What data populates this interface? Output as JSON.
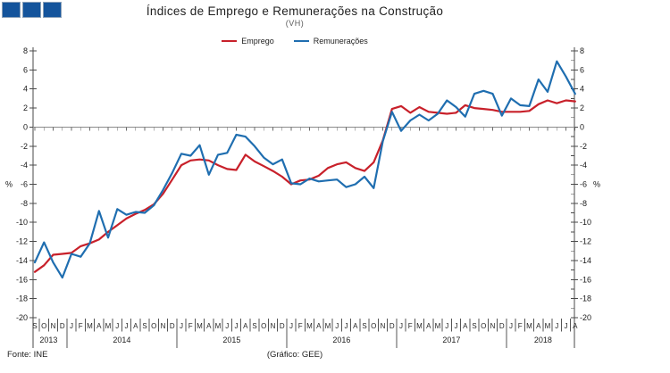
{
  "logo": {
    "fill": "#14549C",
    "border": "#8aa0b8"
  },
  "header": {
    "title": "Índices de Emprego  e Remunerações na Construção",
    "subtitle": "(VH)"
  },
  "legend": [
    {
      "label": "Emprego",
      "color": "#C8202A"
    },
    {
      "label": "Remunerações",
      "color": "#1F6EB0"
    }
  ],
  "footer": {
    "source": "Fonte:  INE",
    "credit": "(Gráfico:  GEE)"
  },
  "chart_data": {
    "type": "line",
    "title": "Índices de Emprego e Remunerações na Construção",
    "subtitle": "(VH)",
    "ylabel": "%",
    "ylim": [
      -20,
      8
    ],
    "ytick_step": 2,
    "grid": "zero-line-only",
    "legend_position": "top-center",
    "x_months": [
      "S",
      "O",
      "N",
      "D",
      "J",
      "F",
      "M",
      "A",
      "M",
      "J",
      "J",
      "A",
      "S",
      "O",
      "N",
      "D",
      "J",
      "F",
      "M",
      "A",
      "M",
      "J",
      "J",
      "A",
      "S",
      "O",
      "N",
      "D",
      "J",
      "F",
      "M",
      "A",
      "M",
      "J",
      "J",
      "A",
      "S",
      "O",
      "N",
      "D",
      "J",
      "F",
      "M",
      "A",
      "M",
      "J",
      "J",
      "A",
      "S",
      "O",
      "N",
      "D",
      "J",
      "F",
      "M",
      "A",
      "M",
      "J",
      "J",
      "A"
    ],
    "year_groups": [
      {
        "label": "2013",
        "start": 0,
        "count": 4
      },
      {
        "label": "2014",
        "start": 4,
        "count": 12
      },
      {
        "label": "2015",
        "start": 16,
        "count": 12
      },
      {
        "label": "2016",
        "start": 28,
        "count": 12
      },
      {
        "label": "2017",
        "start": 40,
        "count": 12
      },
      {
        "label": "2018",
        "start": 52,
        "count": 8
      }
    ],
    "series": [
      {
        "name": "Emprego",
        "color": "#C8202A",
        "values": [
          -15.2,
          -14.5,
          -13.4,
          -13.3,
          -13.2,
          -12.5,
          -12.2,
          -11.8,
          -11.0,
          -10.3,
          -9.6,
          -9.1,
          -8.7,
          -8.1,
          -7.0,
          -5.5,
          -4.0,
          -3.5,
          -3.4,
          -3.5,
          -4.0,
          -4.4,
          -4.5,
          -2.9,
          -3.6,
          -4.1,
          -4.6,
          -5.2,
          -6.0,
          -5.6,
          -5.5,
          -5.1,
          -4.3,
          -3.9,
          -3.7,
          -4.3,
          -4.6,
          -3.7,
          -1.4,
          1.9,
          2.2,
          1.5,
          2.1,
          1.6,
          1.5,
          1.4,
          1.5,
          2.3,
          2.0,
          1.9,
          1.8,
          1.6,
          1.6,
          1.6,
          1.7,
          2.4,
          2.8,
          2.5,
          2.8,
          2.7
        ]
      },
      {
        "name": "Remunerações",
        "color": "#1F6EB0",
        "values": [
          -14.2,
          -12.1,
          -14.2,
          -15.8,
          -13.3,
          -13.6,
          -12.2,
          -8.8,
          -11.6,
          -8.6,
          -9.2,
          -8.9,
          -9.0,
          -8.2,
          -6.6,
          -4.8,
          -2.8,
          -3.0,
          -1.9,
          -5.0,
          -2.9,
          -2.7,
          -0.8,
          -1.0,
          -2.0,
          -3.2,
          -3.9,
          -3.4,
          -5.9,
          -6.0,
          -5.4,
          -5.7,
          -5.6,
          -5.5,
          -6.3,
          -6.0,
          -5.2,
          -6.4,
          -1.5,
          1.6,
          -0.4,
          0.7,
          1.3,
          0.7,
          1.4,
          2.8,
          2.1,
          1.1,
          3.5,
          3.8,
          3.5,
          1.2,
          3.0,
          2.3,
          2.2,
          5.0,
          3.7,
          6.9,
          5.3,
          3.5
        ]
      }
    ]
  }
}
